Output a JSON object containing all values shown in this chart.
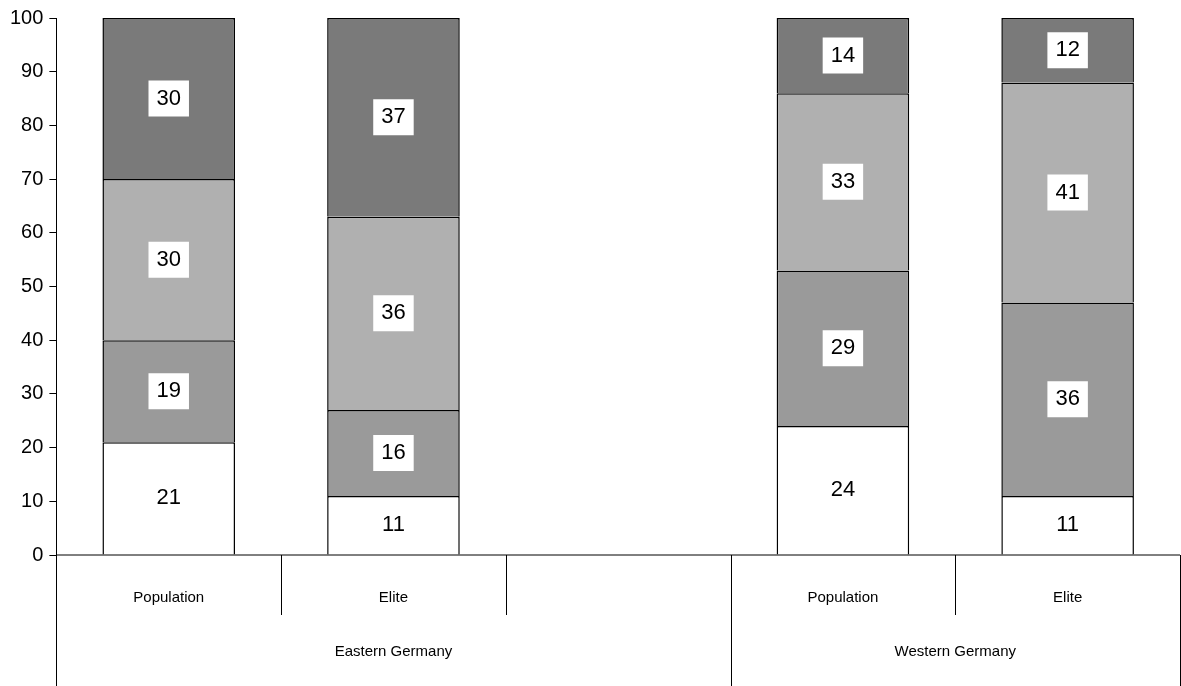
{
  "chart_data": {
    "type": "bar",
    "stacked": true,
    "categories": [
      "Population",
      "Elite",
      null,
      "Population",
      "Elite"
    ],
    "series": [
      {
        "color": "#ffffff",
        "values": [
          21,
          11,
          null,
          24,
          11
        ]
      },
      {
        "color": "#9a9a9a",
        "values": [
          19,
          16,
          null,
          29,
          36
        ]
      },
      {
        "color": "#b0b0b0",
        "values": [
          30,
          36,
          null,
          33,
          41
        ]
      },
      {
        "color": "#7a7a7a",
        "values": [
          30,
          37,
          null,
          14,
          12
        ]
      }
    ],
    "ylim": [
      0,
      100
    ],
    "yticks": [
      0,
      10,
      20,
      30,
      40,
      50,
      60,
      70,
      80,
      90,
      100
    ],
    "grid": false,
    "legend": false,
    "data_labels": true,
    "annotations": [
      "Eastern Germany",
      "Western Germany"
    ]
  }
}
